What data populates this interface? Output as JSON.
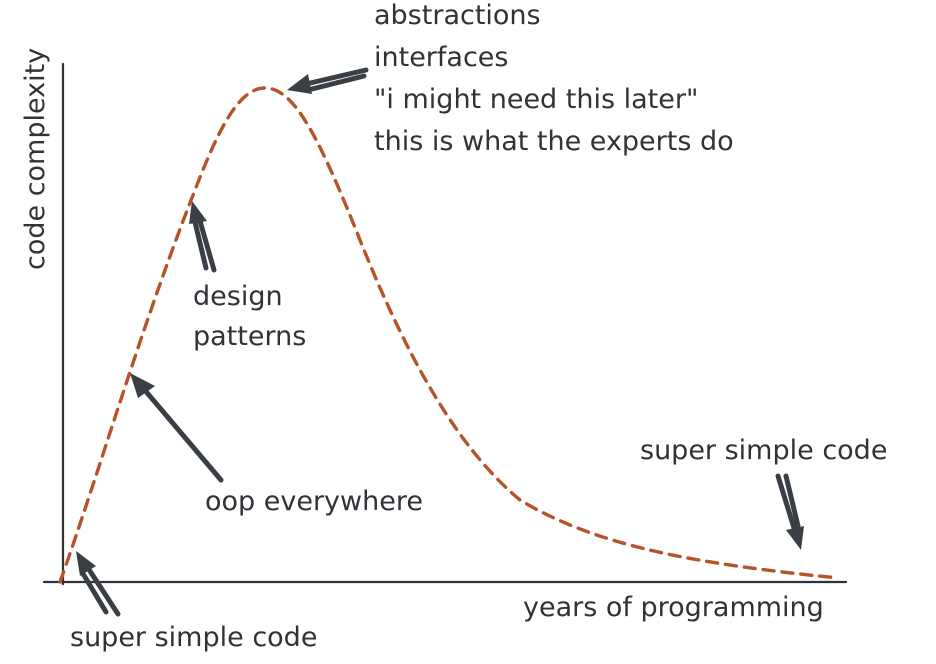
{
  "colors": {
    "ink": "#2f3338",
    "curve": "#b5532a",
    "arrow": "#3a3f45",
    "background": "#ffffff"
  },
  "axes": {
    "y_label": "code complexity",
    "x_label": "years of programming"
  },
  "annotations": {
    "start": "super simple code",
    "oop": "oop everywhere",
    "patterns_line1": "design",
    "patterns_line2": "patterns",
    "peak_line1": "abstractions",
    "peak_line2": "interfaces",
    "peak_line3": "\"i might need this later\"",
    "peak_line4": "this is what the experts do",
    "end": "super simple code"
  }
}
